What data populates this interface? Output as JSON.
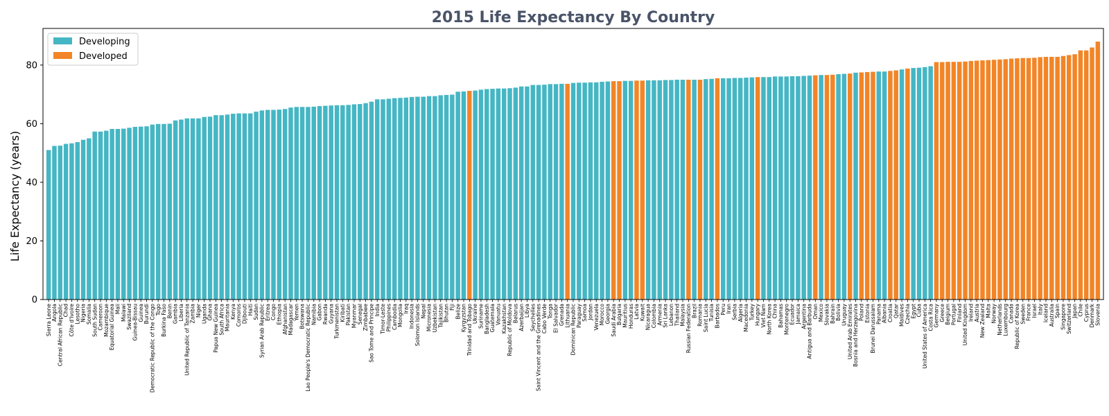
{
  "chart_data": {
    "type": "bar",
    "title": "2015 Life Expectancy By Country",
    "ylabel": "Life Expectancy (years)",
    "xlabel": "",
    "ylim": [
      0,
      92.5
    ],
    "yticks": [
      0,
      20,
      40,
      60,
      80
    ],
    "grid": false,
    "legend_position": "top-left",
    "colors": {
      "Developing": "#45b6c4",
      "Developed": "#f28527"
    },
    "legend": [
      {
        "name": "Developing",
        "color": "#45b6c4"
      },
      {
        "name": "Developed",
        "color": "#f28527"
      }
    ],
    "bars": [
      {
        "country": "Sierra Leone",
        "value": 51.0,
        "status": "Developing"
      },
      {
        "country": "Angola",
        "value": 52.4,
        "status": "Developing"
      },
      {
        "country": "Central African Republic",
        "value": 52.5,
        "status": "Developing"
      },
      {
        "country": "Chad",
        "value": 53.1,
        "status": "Developing"
      },
      {
        "country": "Côte d'Ivoire",
        "value": 53.3,
        "status": "Developing"
      },
      {
        "country": "Lesotho",
        "value": 53.7,
        "status": "Developing"
      },
      {
        "country": "Nigeria",
        "value": 54.5,
        "status": "Developing"
      },
      {
        "country": "Somalia",
        "value": 55.0,
        "status": "Developing"
      },
      {
        "country": "South Sudan",
        "value": 57.3,
        "status": "Developing"
      },
      {
        "country": "Cameroon",
        "value": 57.3,
        "status": "Developing"
      },
      {
        "country": "Mozambique",
        "value": 57.6,
        "status": "Developing"
      },
      {
        "country": "Equatorial Guinea",
        "value": 58.2,
        "status": "Developing"
      },
      {
        "country": "Mali",
        "value": 58.2,
        "status": "Developing"
      },
      {
        "country": "Malawi",
        "value": 58.3,
        "status": "Developing"
      },
      {
        "country": "Swaziland",
        "value": 58.6,
        "status": "Developing"
      },
      {
        "country": "Guinea-Bissau",
        "value": 58.9,
        "status": "Developing"
      },
      {
        "country": "Guinea",
        "value": 59.0,
        "status": "Developing"
      },
      {
        "country": "Burundi",
        "value": 59.1,
        "status": "Developing"
      },
      {
        "country": "Democratic Republic of the Congo",
        "value": 59.7,
        "status": "Developing"
      },
      {
        "country": "Togo",
        "value": 59.9,
        "status": "Developing"
      },
      {
        "country": "Burkina Faso",
        "value": 59.9,
        "status": "Developing"
      },
      {
        "country": "Benin",
        "value": 60.0,
        "status": "Developing"
      },
      {
        "country": "Gambia",
        "value": 61.1,
        "status": "Developing"
      },
      {
        "country": "Liberia",
        "value": 61.4,
        "status": "Developing"
      },
      {
        "country": "United Republic of Tanzania",
        "value": 61.8,
        "status": "Developing"
      },
      {
        "country": "Zambia",
        "value": 61.8,
        "status": "Developing"
      },
      {
        "country": "Niger",
        "value": 61.8,
        "status": "Developing"
      },
      {
        "country": "Uganda",
        "value": 62.3,
        "status": "Developing"
      },
      {
        "country": "Ghana",
        "value": 62.4,
        "status": "Developing"
      },
      {
        "country": "Papua New Guinea",
        "value": 62.9,
        "status": "Developing"
      },
      {
        "country": "South Africa",
        "value": 62.9,
        "status": "Developing"
      },
      {
        "country": "Mauritania",
        "value": 63.1,
        "status": "Developing"
      },
      {
        "country": "Kenya",
        "value": 63.4,
        "status": "Developing"
      },
      {
        "country": "Comoros",
        "value": 63.5,
        "status": "Developing"
      },
      {
        "country": "Djibouti",
        "value": 63.5,
        "status": "Developing"
      },
      {
        "country": "Haiti",
        "value": 63.5,
        "status": "Developing"
      },
      {
        "country": "Sudan",
        "value": 64.1,
        "status": "Developing"
      },
      {
        "country": "Syrian Arab Republic",
        "value": 64.5,
        "status": "Developing"
      },
      {
        "country": "Eritrea",
        "value": 64.7,
        "status": "Developing"
      },
      {
        "country": "Congo",
        "value": 64.7,
        "status": "Developing"
      },
      {
        "country": "Ethiopia",
        "value": 64.8,
        "status": "Developing"
      },
      {
        "country": "Afghanistan",
        "value": 65.0,
        "status": "Developing"
      },
      {
        "country": "Madagascar",
        "value": 65.5,
        "status": "Developing"
      },
      {
        "country": "Yemen",
        "value": 65.7,
        "status": "Developing"
      },
      {
        "country": "Botswana",
        "value": 65.7,
        "status": "Developing"
      },
      {
        "country": "Lao People's Democratic Republic",
        "value": 65.7,
        "status": "Developing"
      },
      {
        "country": "Namibia",
        "value": 65.8,
        "status": "Developing"
      },
      {
        "country": "Gabon",
        "value": 66.0,
        "status": "Developing"
      },
      {
        "country": "Rwanda",
        "value": 66.1,
        "status": "Developing"
      },
      {
        "country": "Guyana",
        "value": 66.2,
        "status": "Developing"
      },
      {
        "country": "Turkmenistan",
        "value": 66.3,
        "status": "Developing"
      },
      {
        "country": "Kiribati",
        "value": 66.3,
        "status": "Developing"
      },
      {
        "country": "Pakistan",
        "value": 66.4,
        "status": "Developing"
      },
      {
        "country": "Myanmar",
        "value": 66.6,
        "status": "Developing"
      },
      {
        "country": "Senegal",
        "value": 66.7,
        "status": "Developing"
      },
      {
        "country": "Zimbabwe",
        "value": 67.0,
        "status": "Developing"
      },
      {
        "country": "Sao Tome and Principe",
        "value": 67.5,
        "status": "Developing"
      },
      {
        "country": "India",
        "value": 68.3,
        "status": "Developing"
      },
      {
        "country": "Timor-Leste",
        "value": 68.3,
        "status": "Developing"
      },
      {
        "country": "Philippines",
        "value": 68.5,
        "status": "Developing"
      },
      {
        "country": "Cambodia",
        "value": 68.7,
        "status": "Developing"
      },
      {
        "country": "Mongolia",
        "value": 68.8,
        "status": "Developing"
      },
      {
        "country": "Iraq",
        "value": 68.9,
        "status": "Developing"
      },
      {
        "country": "Indonesia",
        "value": 69.1,
        "status": "Developing"
      },
      {
        "country": "Solomon Islands",
        "value": 69.2,
        "status": "Developing"
      },
      {
        "country": "Nepal",
        "value": 69.2,
        "status": "Developing"
      },
      {
        "country": "Micronesia",
        "value": 69.4,
        "status": "Developing"
      },
      {
        "country": "Uzbekistan",
        "value": 69.4,
        "status": "Developing"
      },
      {
        "country": "Tajikistan",
        "value": 69.7,
        "status": "Developing"
      },
      {
        "country": "Bhutan",
        "value": 69.8,
        "status": "Developing"
      },
      {
        "country": "Fiji",
        "value": 69.9,
        "status": "Developing"
      },
      {
        "country": "Belize",
        "value": 70.9,
        "status": "Developing"
      },
      {
        "country": "Kyrgyzstan",
        "value": 71.0,
        "status": "Developing"
      },
      {
        "country": "Trinidad and Tobago",
        "value": 71.2,
        "status": "Developed"
      },
      {
        "country": "Ukraine",
        "value": 71.3,
        "status": "Developing"
      },
      {
        "country": "Suriname",
        "value": 71.6,
        "status": "Developing"
      },
      {
        "country": "Bangladesh",
        "value": 71.8,
        "status": "Developing"
      },
      {
        "country": "Guatemala",
        "value": 71.9,
        "status": "Developing"
      },
      {
        "country": "Vanuatu",
        "value": 72.0,
        "status": "Developing"
      },
      {
        "country": "Kazakhstan",
        "value": 72.0,
        "status": "Developing"
      },
      {
        "country": "Republic of Moldova",
        "value": 72.1,
        "status": "Developing"
      },
      {
        "country": "Belarus",
        "value": 72.3,
        "status": "Developing"
      },
      {
        "country": "Azerbaijan",
        "value": 72.7,
        "status": "Developing"
      },
      {
        "country": "Libya",
        "value": 72.7,
        "status": "Developing"
      },
      {
        "country": "Seychelles",
        "value": 73.2,
        "status": "Developing"
      },
      {
        "country": "Saint Vincent and the Grenadines",
        "value": 73.2,
        "status": "Developing"
      },
      {
        "country": "Cabo Verde",
        "value": 73.3,
        "status": "Developing"
      },
      {
        "country": "Tonga",
        "value": 73.5,
        "status": "Developing"
      },
      {
        "country": "El Salvador",
        "value": 73.5,
        "status": "Developing"
      },
      {
        "country": "Grenada",
        "value": 73.6,
        "status": "Developing"
      },
      {
        "country": "Lithuania",
        "value": 73.6,
        "status": "Developed"
      },
      {
        "country": "Dominican Republic",
        "value": 73.9,
        "status": "Developing"
      },
      {
        "country": "Paraguay",
        "value": 74.0,
        "status": "Developing"
      },
      {
        "country": "Samoa",
        "value": 74.0,
        "status": "Developing"
      },
      {
        "country": "Jordan",
        "value": 74.1,
        "status": "Developing"
      },
      {
        "country": "Venezuela",
        "value": 74.1,
        "status": "Developing"
      },
      {
        "country": "Morocco",
        "value": 74.3,
        "status": "Developing"
      },
      {
        "country": "Georgia",
        "value": 74.4,
        "status": "Developing"
      },
      {
        "country": "Saudi Arabia",
        "value": 74.5,
        "status": "Developed"
      },
      {
        "country": "Bulgaria",
        "value": 74.5,
        "status": "Developed"
      },
      {
        "country": "Mauritius",
        "value": 74.6,
        "status": "Developing"
      },
      {
        "country": "Honduras",
        "value": 74.6,
        "status": "Developing"
      },
      {
        "country": "Latvia",
        "value": 74.7,
        "status": "Developed"
      },
      {
        "country": "Kuwait",
        "value": 74.7,
        "status": "Developed"
      },
      {
        "country": "Nicaragua",
        "value": 74.8,
        "status": "Developing"
      },
      {
        "country": "Colombia",
        "value": 74.8,
        "status": "Developing"
      },
      {
        "country": "Armenia",
        "value": 74.8,
        "status": "Developing"
      },
      {
        "country": "Sri Lanka",
        "value": 74.9,
        "status": "Developing"
      },
      {
        "country": "Lebanon",
        "value": 74.9,
        "status": "Developing"
      },
      {
        "country": "Thailand",
        "value": 75.0,
        "status": "Developing"
      },
      {
        "country": "Malaysia",
        "value": 75.0,
        "status": "Developing"
      },
      {
        "country": "Russian Federation",
        "value": 75.0,
        "status": "Developed"
      },
      {
        "country": "Brazil",
        "value": 75.0,
        "status": "Developing"
      },
      {
        "country": "Romania",
        "value": 75.0,
        "status": "Developed"
      },
      {
        "country": "Saint Lucia",
        "value": 75.2,
        "status": "Developing"
      },
      {
        "country": "Tunisia",
        "value": 75.3,
        "status": "Developing"
      },
      {
        "country": "Barbados",
        "value": 75.5,
        "status": "Developed"
      },
      {
        "country": "Peru",
        "value": 75.5,
        "status": "Developing"
      },
      {
        "country": "Iran",
        "value": 75.5,
        "status": "Developing"
      },
      {
        "country": "Serbia",
        "value": 75.6,
        "status": "Developing"
      },
      {
        "country": "Algeria",
        "value": 75.6,
        "status": "Developing"
      },
      {
        "country": "Macedonia",
        "value": 75.7,
        "status": "Developing"
      },
      {
        "country": "Turkey",
        "value": 75.8,
        "status": "Developing"
      },
      {
        "country": "Hungary",
        "value": 75.9,
        "status": "Developed"
      },
      {
        "country": "Viet Nam",
        "value": 75.9,
        "status": "Developing"
      },
      {
        "country": "North Korea",
        "value": 75.9,
        "status": "Developing"
      },
      {
        "country": "China",
        "value": 76.1,
        "status": "Developing"
      },
      {
        "country": "Bahamas",
        "value": 76.1,
        "status": "Developing"
      },
      {
        "country": "Montenegro",
        "value": 76.1,
        "status": "Developing"
      },
      {
        "country": "Ecuador",
        "value": 76.2,
        "status": "Developing"
      },
      {
        "country": "Jamaica",
        "value": 76.2,
        "status": "Developing"
      },
      {
        "country": "Argentina",
        "value": 76.3,
        "status": "Developing"
      },
      {
        "country": "Antigua and Barbuda",
        "value": 76.4,
        "status": "Developing"
      },
      {
        "country": "Oman",
        "value": 76.5,
        "status": "Developed"
      },
      {
        "country": "Mexico",
        "value": 76.6,
        "status": "Developing"
      },
      {
        "country": "Slovakia",
        "value": 76.6,
        "status": "Developed"
      },
      {
        "country": "Bahrain",
        "value": 76.7,
        "status": "Developed"
      },
      {
        "country": "Bolivia",
        "value": 76.9,
        "status": "Developing"
      },
      {
        "country": "Uruguay",
        "value": 77.0,
        "status": "Developing"
      },
      {
        "country": "United Arab Emirates",
        "value": 77.1,
        "status": "Developed"
      },
      {
        "country": "Bosnia and Herzegovina",
        "value": 77.4,
        "status": "Developing"
      },
      {
        "country": "Poland",
        "value": 77.5,
        "status": "Developed"
      },
      {
        "country": "Estonia",
        "value": 77.6,
        "status": "Developed"
      },
      {
        "country": "Brunei Darussalam",
        "value": 77.7,
        "status": "Developed"
      },
      {
        "country": "Panama",
        "value": 77.8,
        "status": "Developing"
      },
      {
        "country": "Albania",
        "value": 77.8,
        "status": "Developing"
      },
      {
        "country": "Croatia",
        "value": 78.0,
        "status": "Developed"
      },
      {
        "country": "Qatar",
        "value": 78.2,
        "status": "Developed"
      },
      {
        "country": "Maldives",
        "value": 78.5,
        "status": "Developing"
      },
      {
        "country": "Czechia",
        "value": 78.8,
        "status": "Developed"
      },
      {
        "country": "Egypt",
        "value": 79.0,
        "status": "Developing"
      },
      {
        "country": "Cuba",
        "value": 79.1,
        "status": "Developing"
      },
      {
        "country": "United States of America",
        "value": 79.3,
        "status": "Developing"
      },
      {
        "country": "Costa Rica",
        "value": 79.6,
        "status": "Developing"
      },
      {
        "country": "Germany",
        "value": 81.0,
        "status": "Developed"
      },
      {
        "country": "Greece",
        "value": 81.0,
        "status": "Developed"
      },
      {
        "country": "Belgium",
        "value": 81.1,
        "status": "Developed"
      },
      {
        "country": "Portugal",
        "value": 81.1,
        "status": "Developed"
      },
      {
        "country": "Finland",
        "value": 81.1,
        "status": "Developed"
      },
      {
        "country": "United Kingdom",
        "value": 81.2,
        "status": "Developed"
      },
      {
        "country": "Ireland",
        "value": 81.4,
        "status": "Developed"
      },
      {
        "country": "Austria",
        "value": 81.5,
        "status": "Developed"
      },
      {
        "country": "New Zealand",
        "value": 81.6,
        "status": "Developed"
      },
      {
        "country": "Malta",
        "value": 81.7,
        "status": "Developed"
      },
      {
        "country": "Norway",
        "value": 81.8,
        "status": "Developed"
      },
      {
        "country": "Netherlands",
        "value": 81.9,
        "status": "Developed"
      },
      {
        "country": "Luxembourg",
        "value": 82.0,
        "status": "Developed"
      },
      {
        "country": "Canada",
        "value": 82.2,
        "status": "Developed"
      },
      {
        "country": "Republic of Korea",
        "value": 82.3,
        "status": "Developed"
      },
      {
        "country": "Sweden",
        "value": 82.4,
        "status": "Developed"
      },
      {
        "country": "France",
        "value": 82.4,
        "status": "Developed"
      },
      {
        "country": "Israel",
        "value": 82.5,
        "status": "Developed"
      },
      {
        "country": "Italy",
        "value": 82.7,
        "status": "Developed"
      },
      {
        "country": "Iceland",
        "value": 82.8,
        "status": "Developed"
      },
      {
        "country": "Australia",
        "value": 82.8,
        "status": "Developed"
      },
      {
        "country": "Spain",
        "value": 82.8,
        "status": "Developed"
      },
      {
        "country": "Singapore",
        "value": 83.1,
        "status": "Developed"
      },
      {
        "country": "Switzerland",
        "value": 83.4,
        "status": "Developed"
      },
      {
        "country": "Japan",
        "value": 83.7,
        "status": "Developed"
      },
      {
        "country": "Chile",
        "value": 85.0,
        "status": "Developed"
      },
      {
        "country": "Cyprus",
        "value": 85.0,
        "status": "Developed"
      },
      {
        "country": "Denmark",
        "value": 86.0,
        "status": "Developed"
      },
      {
        "country": "Slovenia",
        "value": 88.0,
        "status": "Developed"
      }
    ]
  }
}
